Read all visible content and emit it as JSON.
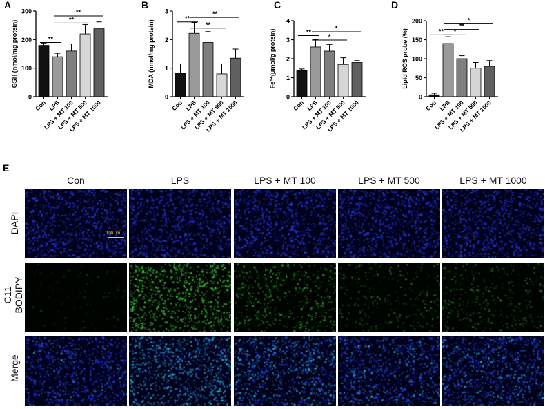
{
  "colors": {
    "con": "#111111",
    "lps": "#9a9a9a",
    "mt100": "#7f7f7f",
    "mt500": "#d6d6d6",
    "mt1000": "#606060"
  },
  "chart_data": [
    {
      "panel": "A",
      "type": "bar",
      "categories": [
        "Con",
        "LPS",
        "LPS + MT 100",
        "LPS + MT 500",
        "LPS + MT 1000"
      ],
      "values": [
        180,
        140,
        160,
        220,
        238
      ],
      "errors": [
        8,
        12,
        25,
        33,
        24
      ],
      "ylabel": "GSH (nmol/mg protein)",
      "ylim": [
        0,
        300
      ],
      "yticks": [
        "0",
        "100",
        "200",
        "300"
      ],
      "sig": [
        {
          "from": 0,
          "to": 1,
          "label": "**",
          "level": 190
        },
        {
          "from": 1,
          "to": 3,
          "label": "**",
          "level": 258
        },
        {
          "from": 1,
          "to": 4,
          "label": "**",
          "level": 283
        }
      ]
    },
    {
      "panel": "B",
      "type": "bar",
      "categories": [
        "Con",
        "LPS",
        "LPS + MT 100",
        "LPS + MT 500",
        "LPS + MT 1000"
      ],
      "values": [
        0.82,
        2.22,
        1.9,
        0.8,
        1.35
      ],
      "errors": [
        0.33,
        0.38,
        0.38,
        0.35,
        0.32
      ],
      "ylabel": "MDA (nmol/mg protein)",
      "ylim": [
        0,
        3
      ],
      "yticks": [
        "0",
        "1",
        "2",
        "3"
      ],
      "sig": [
        {
          "from": 0,
          "to": 1,
          "label": "**",
          "level": 2.62
        },
        {
          "from": 1,
          "to": 3,
          "label": "**",
          "level": 2.4
        },
        {
          "from": 1,
          "to": 4,
          "label": "**",
          "level": 2.78
        }
      ]
    },
    {
      "panel": "C",
      "type": "bar",
      "categories": [
        "Con",
        "LPS",
        "LPS + MT 100",
        "LPS + MT 500",
        "LPS + MT 1000"
      ],
      "values": [
        1.38,
        2.62,
        2.4,
        1.7,
        1.8
      ],
      "errors": [
        0.08,
        0.4,
        0.35,
        0.35,
        0.1
      ],
      "ylabel": "Fe²⁺(μmol/g protein)",
      "ylim": [
        0,
        4
      ],
      "yticks": [
        "0",
        "1",
        "2",
        "3",
        "4"
      ],
      "sig": [
        {
          "from": 0,
          "to": 1,
          "label": "**",
          "level": 3.22
        },
        {
          "from": 1,
          "to": 3,
          "label": "*",
          "level": 2.98
        },
        {
          "from": 1,
          "to": 4,
          "label": "*",
          "level": 3.42
        }
      ]
    },
    {
      "panel": "D",
      "type": "bar",
      "categories": [
        "Con",
        "LPS",
        "LPS + MT 100",
        "LPS + MT 500",
        "LPS + MT 1000"
      ],
      "values": [
        5,
        140,
        100,
        75,
        80
      ],
      "errors": [
        4,
        18,
        8,
        15,
        15
      ],
      "ylabel": "Lipid ROS probe (%)",
      "ylim": [
        0,
        200
      ],
      "yticks": [
        "0",
        "50",
        "100",
        "150",
        "200"
      ],
      "sig": [
        {
          "from": 0,
          "to": 1,
          "label": "**",
          "level": 163
        },
        {
          "from": 1,
          "to": 2,
          "label": "*",
          "level": 163
        },
        {
          "from": 1,
          "to": 3,
          "label": "**",
          "level": 177
        },
        {
          "from": 1,
          "to": 4,
          "label": "*",
          "level": 192
        }
      ]
    }
  ],
  "micro": {
    "panel": "E",
    "columns": [
      "Con",
      "LPS",
      "LPS + MT 100",
      "LPS + MT 500",
      "LPS + MT 1000"
    ],
    "rows": [
      "DAPI",
      "C11\nBODIPY",
      "Merge"
    ],
    "scale_bar": "100 μm",
    "green_intensity": [
      0.05,
      0.9,
      0.55,
      0.3,
      0.35
    ]
  }
}
